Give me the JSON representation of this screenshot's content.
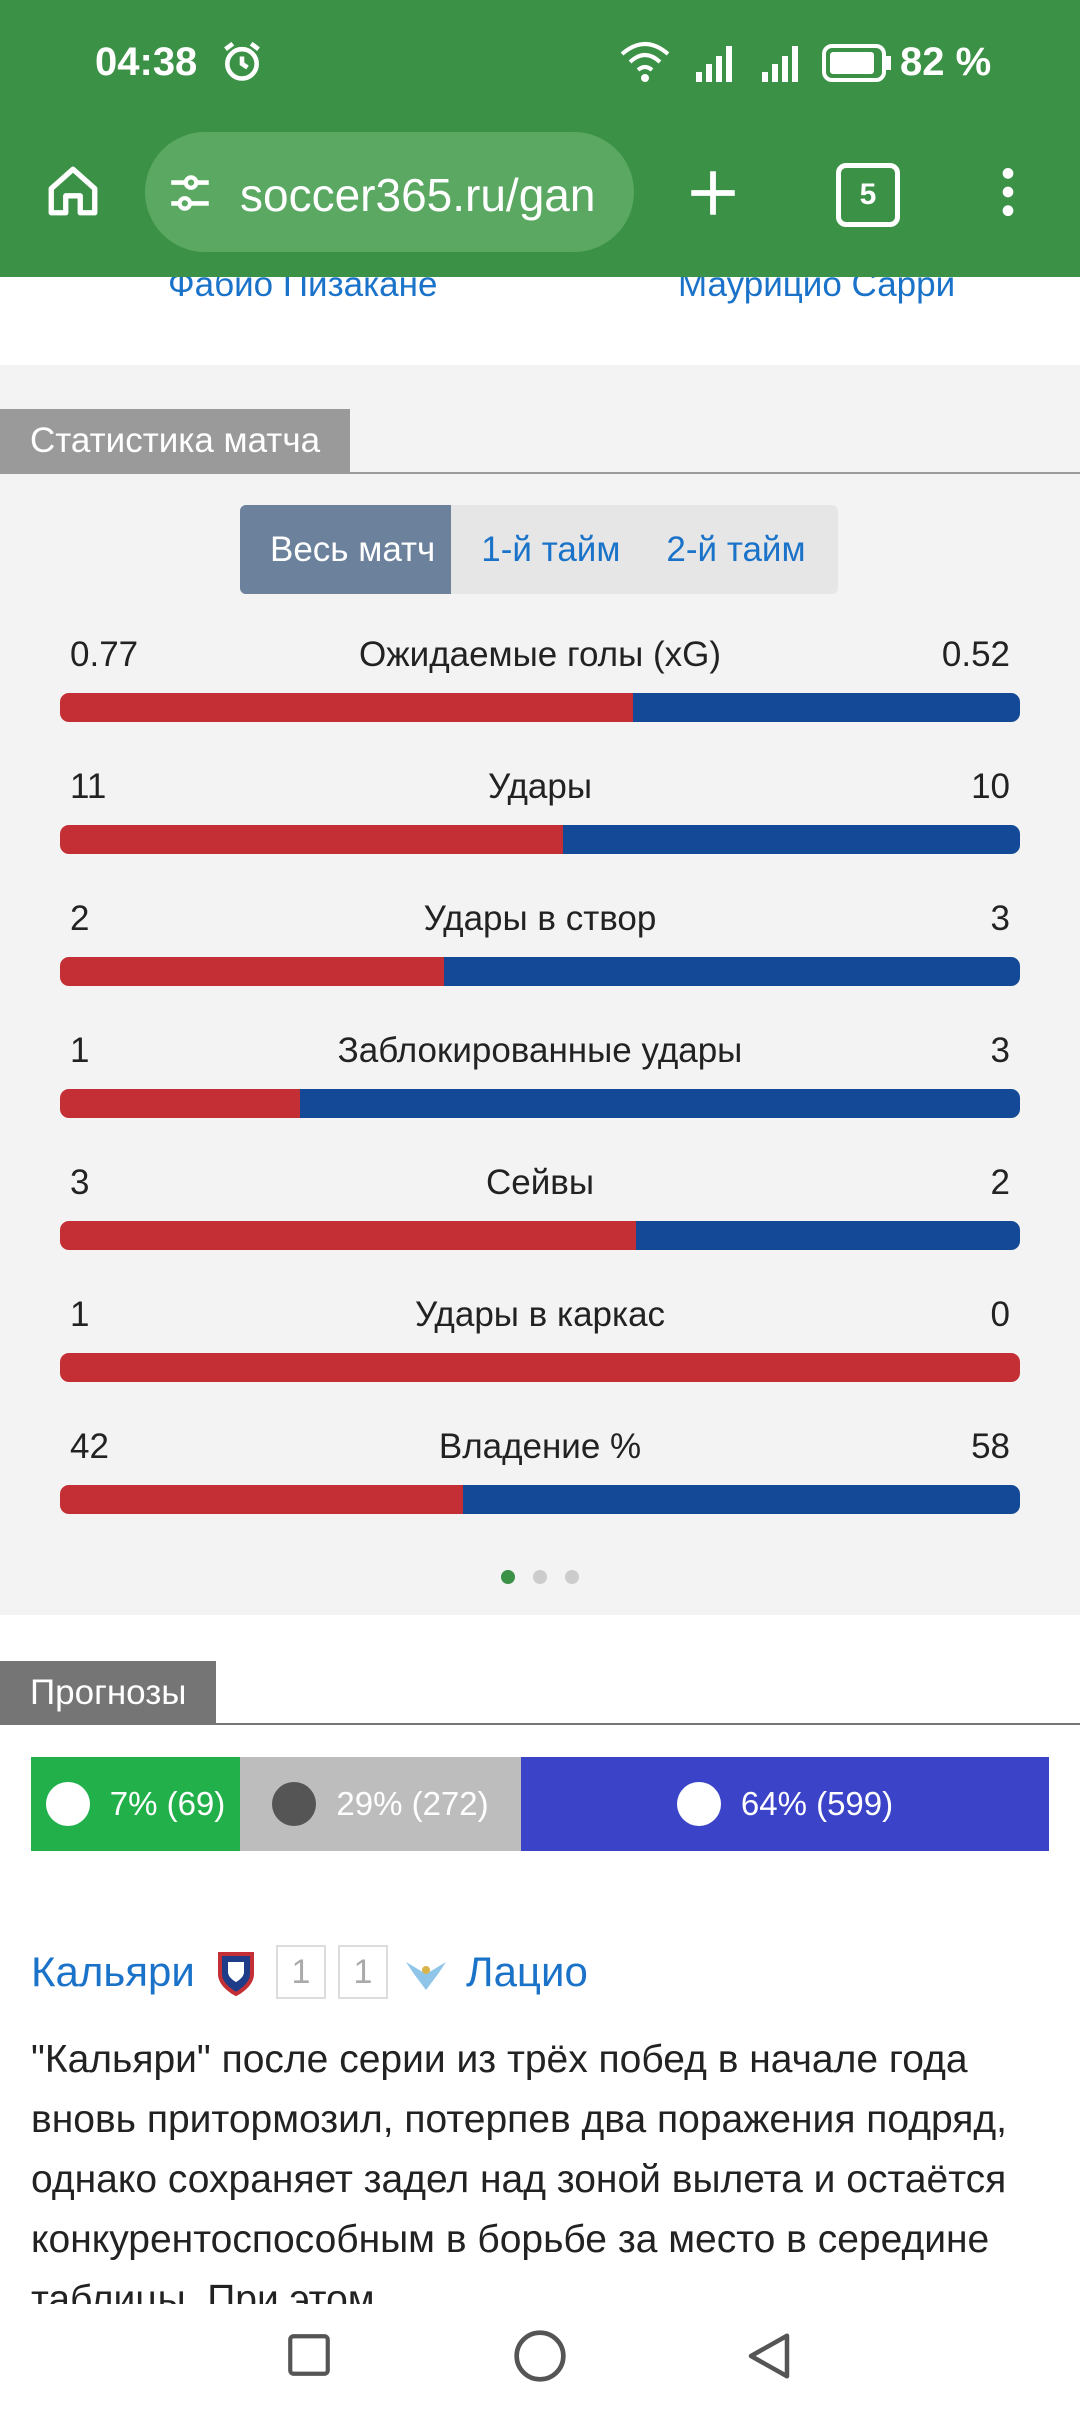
{
  "status_bar": {
    "time": "04:38",
    "battery": "82 %"
  },
  "browser": {
    "url": "soccer365.ru/gan",
    "tabs_count": "5"
  },
  "coaches": [
    "Фабио Пизакане",
    "Маурицио Сарри"
  ],
  "match_stats": {
    "title": "Статистика матча",
    "tabs": [
      "Весь матч",
      "1-й тайм",
      "2-й тайм"
    ],
    "active_tab": 0,
    "home_color": "#c32f34",
    "away_color": "#134996",
    "rows": [
      {
        "label": "Ожидаемые голы (xG)",
        "home": 0.77,
        "away": 0.52
      },
      {
        "label": "Удары",
        "home": 11,
        "away": 10
      },
      {
        "label": "Удары в створ",
        "home": 2,
        "away": 3
      },
      {
        "label": "Заблокированные удары",
        "home": 1,
        "away": 3
      },
      {
        "label": "Сейвы",
        "home": 3,
        "away": 2
      },
      {
        "label": "Удары в каркас",
        "home": 1,
        "away": 0
      },
      {
        "label": "Владение %",
        "home": 42,
        "away": 58
      }
    ]
  },
  "predictions": {
    "title": "Прогнозы",
    "segments": [
      {
        "label": "7% (69)",
        "color": "#22b04a"
      },
      {
        "label": "29% (272)",
        "color": "#bdbdbd"
      },
      {
        "label": "64% (599)",
        "color": "#3b44c8"
      }
    ]
  },
  "preview": {
    "home": "Кальяри",
    "home_score": "1",
    "away_score": "1",
    "away": "Лацио",
    "text": "\"Кальяри\" после серии из трёх побед в начале года вновь притормозил, потерпев два поражения подряд, однако сохраняет задел над зоной вылета и остаётся конкурентоспособным в борьбе за место в середине таблицы. При этом"
  }
}
